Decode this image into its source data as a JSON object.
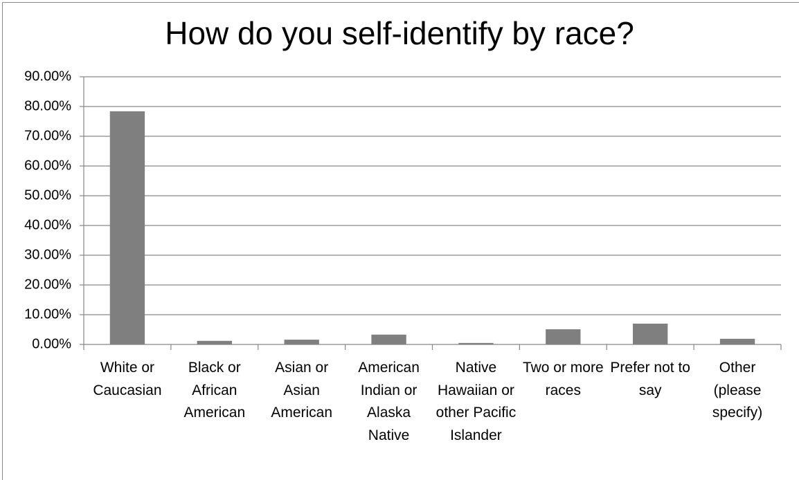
{
  "chart_data": {
    "type": "bar",
    "title": "How do you self-identify by race?",
    "categories": [
      "White or Caucasian",
      "Black or African American",
      "Asian or Asian American",
      "American Indian or Alaska Native",
      "Native Hawaiian or other Pacific Islander",
      "Two or more races",
      "Prefer not to say",
      "Other (please specify)"
    ],
    "values": [
      78.4,
      1.2,
      1.6,
      3.3,
      0.5,
      5.1,
      7.0,
      1.9
    ],
    "color": "#7f7f7f",
    "ylim": [
      0,
      90
    ],
    "yticks": [
      {
        "value": 0,
        "label": "0.00%"
      },
      {
        "value": 10,
        "label": "10.00%"
      },
      {
        "value": 20,
        "label": "20.00%"
      },
      {
        "value": 30,
        "label": "30.00%"
      },
      {
        "value": 40,
        "label": "40.00%"
      },
      {
        "value": 50,
        "label": "50.00%"
      },
      {
        "value": 60,
        "label": "60.00%"
      },
      {
        "value": 70,
        "label": "70.00%"
      },
      {
        "value": 80,
        "label": "80.00%"
      },
      {
        "value": 90,
        "label": "90.00%"
      }
    ],
    "grid": true
  }
}
